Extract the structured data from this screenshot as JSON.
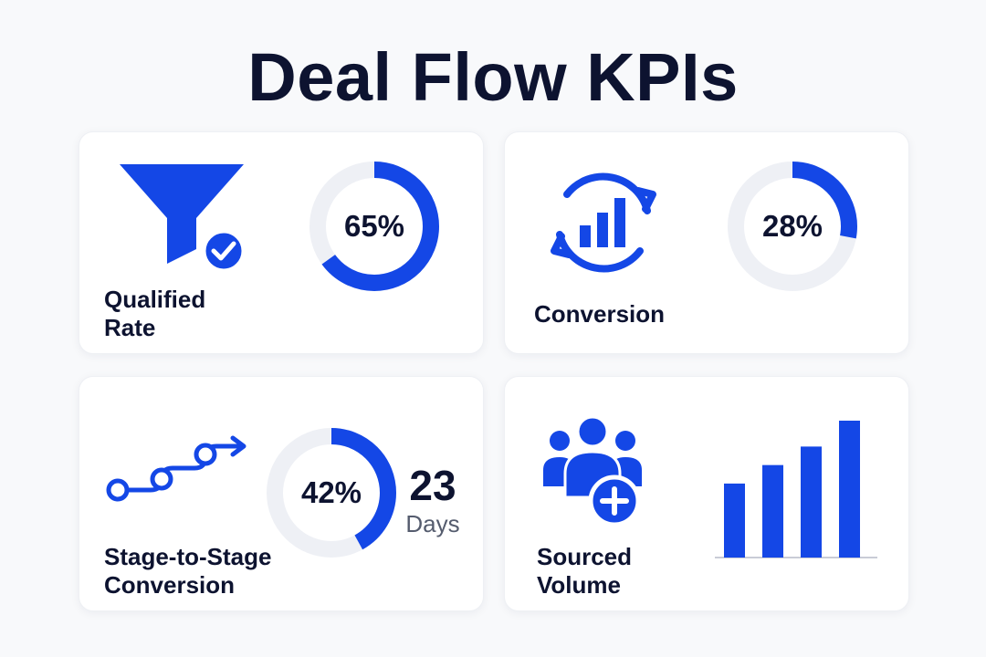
{
  "title": "Deal Flow KPIs",
  "colors": {
    "accent": "#1447e6",
    "track": "#eef0f5",
    "text": "#0d1330",
    "muted": "#555c6e"
  },
  "cards": {
    "qualified": {
      "label_line1": "Qualified",
      "label_line2": "Rate",
      "percent_text": "65%",
      "percent": 65,
      "icon": "funnel-check-icon"
    },
    "conversion": {
      "label": "Conversion",
      "percent_text": "28%",
      "percent": 28,
      "icon": "cycle-bar-chart-icon"
    },
    "stage": {
      "label_line1": "Stage-to-Stage",
      "label_line2": "Conversion",
      "percent_text": "42%",
      "percent": 42,
      "days_value": "23",
      "days_unit": "Days",
      "icon": "stage-path-icon"
    },
    "sourced": {
      "label_line1": "Sourced",
      "label_line2": "Volume",
      "icon": "users-add-icon",
      "bar_values": [
        4,
        5,
        6,
        7.4
      ]
    }
  }
}
